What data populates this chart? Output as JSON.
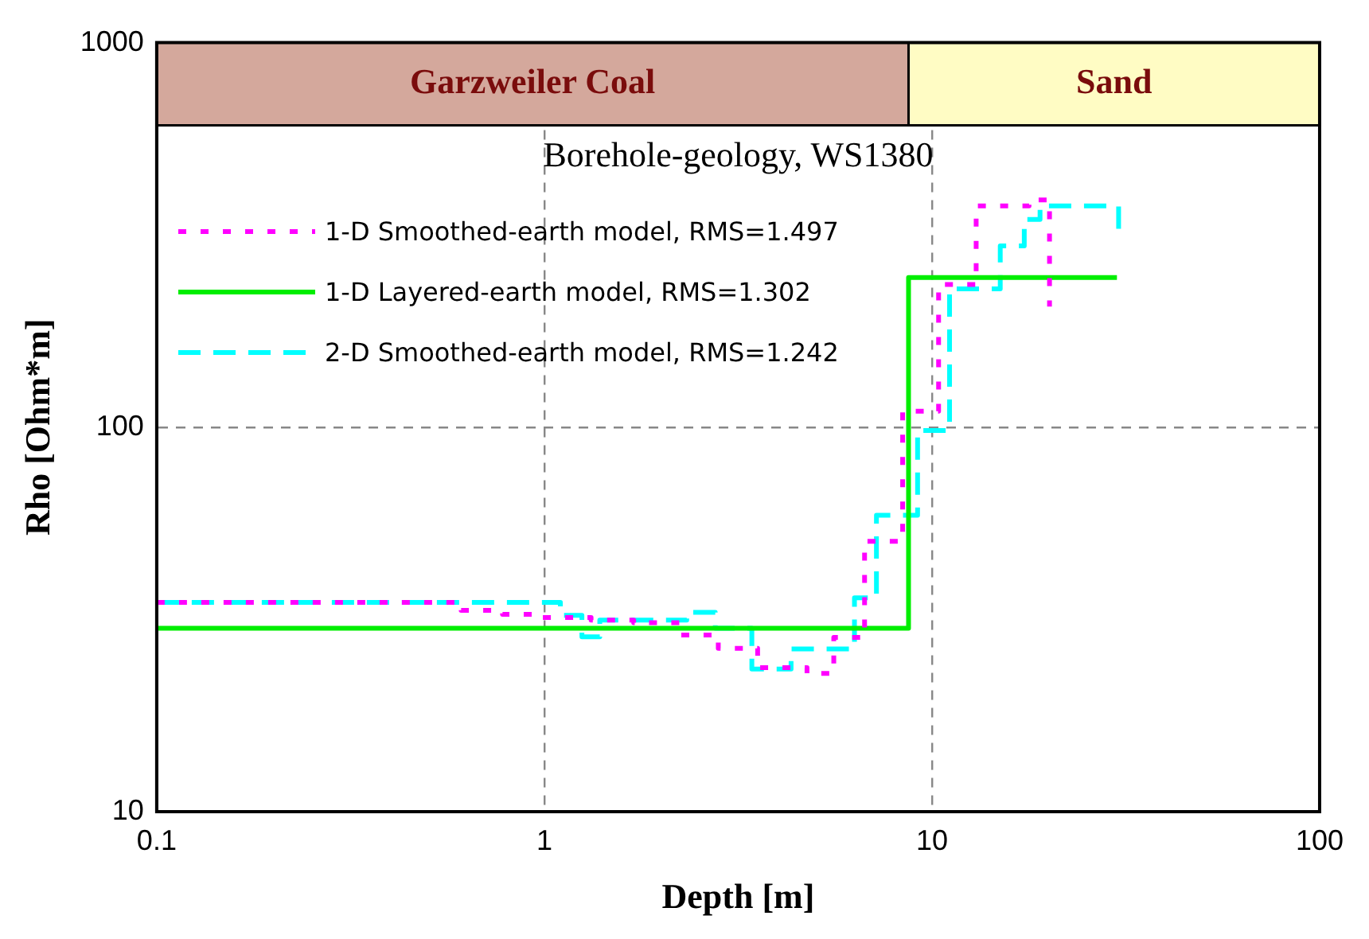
{
  "chart_data": {
    "type": "step",
    "title": "Borehole-geology, WS1380",
    "xlabel": "Depth [m]",
    "ylabel": "Rho [Ohm*m]",
    "log": "xy",
    "xlim": [
      0.1,
      100
    ],
    "xticks": [
      0.1,
      1,
      10,
      100
    ],
    "ylim": [
      10,
      1000
    ],
    "yticks": [
      10,
      100,
      1000
    ],
    "grid": true,
    "legend": "top left",
    "bands": [
      {
        "axis": "x",
        "from": 0.1,
        "to": 8.7,
        "label": "Garzweiler Coal",
        "color": "#d4a89c"
      },
      {
        "axis": "x",
        "from": 8.7,
        "to": 100,
        "label": "Sand",
        "color": "#fffcc4"
      }
    ],
    "series": [
      {
        "name": "1-D Smoothed-earth model, RMS=1.497",
        "color": "#ff00ff",
        "line_style": "dotted",
        "x": [
          0.1,
          0.61,
          0.78,
          0.96,
          1.32,
          1.7,
          2.24,
          2.81,
          3.55,
          4.76,
          5.58,
          6.7,
          8.4,
          10.4,
          13,
          17.8,
          20.1
        ],
        "values": [
          35,
          33.4,
          32.6,
          32,
          31.5,
          31,
          28.8,
          26.6,
          23.7,
          22.9,
          28.4,
          50.5,
          110,
          235,
          376,
          390,
          206
        ]
      },
      {
        "name": "1-D Layered-earth model, RMS=1.302",
        "color": "#00ee00",
        "line_style": "solid",
        "x": [
          0.1,
          8.7,
          30
        ],
        "values": [
          30,
          245,
          245
        ]
      },
      {
        "name": "2-D Smoothed-earth model, RMS=1.242",
        "color": "#00ffff",
        "line_style": "dashed",
        "x": [
          0.1,
          1.1,
          1.25,
          1.39,
          2.33,
          2.76,
          3.43,
          4.33,
          6.31,
          7.19,
          9.18,
          11.1,
          15,
          17.3,
          19,
          22.4,
          30.3
        ],
        "values": [
          35,
          32.4,
          28.5,
          31.5,
          33,
          30,
          23.5,
          26.5,
          36,
          59,
          98,
          229,
          296,
          347,
          376,
          376,
          315
        ]
      }
    ]
  }
}
